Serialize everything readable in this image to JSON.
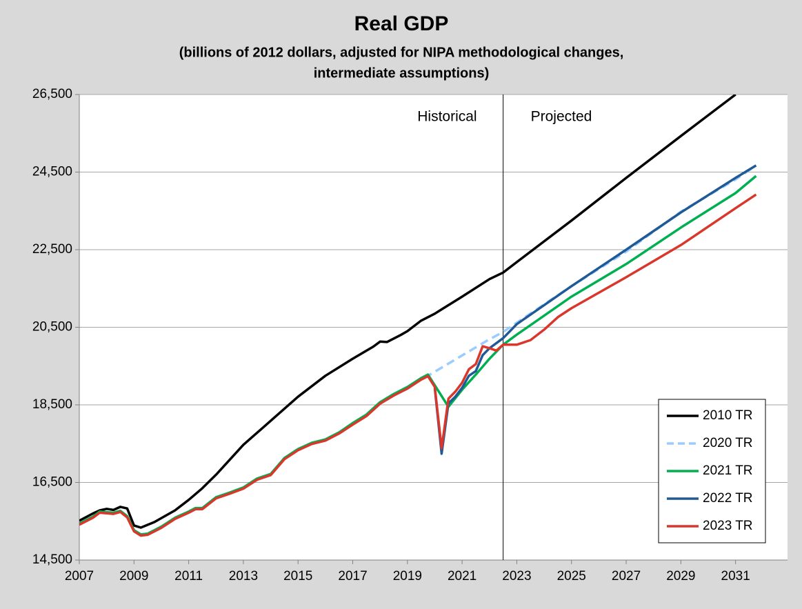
{
  "chart_data": {
    "type": "line",
    "title": "Real GDP",
    "subtitle": [
      "(billions of 2012 dollars, adjusted for NIPA methodological changes,",
      "intermediate assumptions)"
    ],
    "annotations": [
      "Historical",
      "Projected"
    ],
    "divider": 2022.5,
    "xlim": [
      2007,
      2032.9
    ],
    "xticks": [
      2007,
      2009,
      2011,
      2013,
      2015,
      2017,
      2019,
      2021,
      2023,
      2025,
      2027,
      2029,
      2031
    ],
    "ylim": [
      14500,
      26500
    ],
    "yticks": [
      {
        "value": 14500,
        "label": "14,500"
      },
      {
        "value": 16500,
        "label": "16,500"
      },
      {
        "value": 18500,
        "label": "18,500"
      },
      {
        "value": 20500,
        "label": "20,500"
      },
      {
        "value": 22500,
        "label": "22,500"
      },
      {
        "value": 24500,
        "label": "24,500"
      },
      {
        "value": 26500,
        "label": "26,500"
      }
    ],
    "grid": true,
    "legend": "bottom-right",
    "series": [
      {
        "name": "2010 TR",
        "color": "#000000",
        "dashed": false,
        "x": [
          2007,
          2007.5,
          2007.75,
          2008,
          2008.25,
          2008.5,
          2008.75,
          2009,
          2009.25,
          2009.75,
          2010.5,
          2011,
          2011.5,
          2012,
          2013,
          2014,
          2015,
          2016,
          2017,
          2017.75,
          2018,
          2018.25,
          2018.75,
          2019,
          2019.5,
          2020,
          2021,
          2022,
          2022.5,
          2023,
          2025,
          2027,
          2029,
          2031
        ],
        "values": [
          15513,
          15700,
          15780,
          15820,
          15790,
          15870,
          15830,
          15390,
          15335,
          15480,
          15780,
          16050,
          16350,
          16700,
          17470,
          18090,
          18710,
          19250,
          19690,
          20000,
          20130,
          20120,
          20300,
          20400,
          20670,
          20850,
          21290,
          21740,
          21910,
          22180,
          23250,
          24350,
          25430,
          26500
        ]
      },
      {
        "name": "2020 TR",
        "color": "#99ccff",
        "dashed": true,
        "x": [
          2007,
          2007.5,
          2007.75,
          2008.25,
          2008.5,
          2008.75,
          2009,
          2009.25,
          2009.5,
          2009.75,
          2010,
          2010.5,
          2011,
          2011.25,
          2011.5,
          2012,
          2012.5,
          2013,
          2013.5,
          2014,
          2014.5,
          2015,
          2015.5,
          2016,
          2016.5,
          2017,
          2017.5,
          2018,
          2018.5,
          2019,
          2019.5,
          2019.75,
          2021.9,
          2022.5,
          2023,
          2025,
          2027,
          2029,
          2031,
          2031.75
        ],
        "values": [
          15420,
          15600,
          15730,
          15700,
          15750,
          15610,
          15250,
          15140,
          15160,
          15250,
          15340,
          15570,
          15730,
          15820,
          15820,
          16100,
          16220,
          16350,
          16580,
          16700,
          17110,
          17340,
          17500,
          17590,
          17770,
          18000,
          18220,
          18540,
          18750,
          18930,
          19160,
          19250,
          20150,
          20380,
          20620,
          21560,
          22450,
          23480,
          24310,
          24670
        ]
      },
      {
        "name": "2021 TR",
        "color": "#00b050",
        "dashed": false,
        "x": [
          2007,
          2007.5,
          2007.75,
          2008.25,
          2008.5,
          2008.75,
          2009,
          2009.25,
          2009.5,
          2009.75,
          2010,
          2010.5,
          2011,
          2011.25,
          2011.5,
          2012,
          2012.5,
          2013,
          2013.5,
          2014,
          2014.5,
          2015,
          2015.5,
          2016,
          2016.5,
          2017,
          2017.5,
          2018,
          2018.5,
          2019,
          2019.5,
          2019.75,
          2020.5,
          2021,
          2021.5,
          2022,
          2022.5,
          2023,
          2025,
          2027,
          2029,
          2031,
          2031.75
        ],
        "values": [
          15440,
          15620,
          15750,
          15720,
          15770,
          15630,
          15270,
          15160,
          15180,
          15270,
          15360,
          15590,
          15750,
          15840,
          15840,
          16120,
          16240,
          16370,
          16600,
          16720,
          17130,
          17360,
          17520,
          17610,
          17790,
          18030,
          18250,
          18570,
          18780,
          18960,
          19190,
          19280,
          18450,
          18890,
          19280,
          19690,
          20050,
          20310,
          21290,
          22130,
          23070,
          23960,
          24400
        ]
      },
      {
        "name": "2022 TR",
        "color": "#1f5a96",
        "dashed": false,
        "x": [
          2020,
          2020.25,
          2020.5,
          2020.75,
          2021,
          2021.25,
          2021.5,
          2021.75,
          2022,
          2022.5,
          2023,
          2025,
          2027,
          2029,
          2031,
          2031.75
        ],
        "values": [
          18930,
          17240,
          18540,
          18710,
          18940,
          19250,
          19370,
          19780,
          19960,
          20220,
          20580,
          21560,
          22500,
          23460,
          24350,
          24670
        ]
      },
      {
        "name": "2023 TR",
        "color": "#d9372c",
        "dashed": false,
        "x": [
          2007,
          2007.5,
          2007.75,
          2008.25,
          2008.5,
          2008.75,
          2009,
          2009.25,
          2009.5,
          2009.75,
          2010,
          2010.5,
          2011,
          2011.25,
          2011.5,
          2012,
          2012.5,
          2013,
          2013.5,
          2014,
          2014.5,
          2015,
          2015.5,
          2016,
          2016.5,
          2017,
          2017.5,
          2018,
          2018.5,
          2019,
          2019.5,
          2019.75,
          2020,
          2020.25,
          2020.5,
          2020.75,
          2021,
          2021.25,
          2021.5,
          2021.75,
          2022,
          2022.25,
          2022.5,
          2023,
          2023.5,
          2024,
          2024.5,
          2025,
          2027,
          2029,
          2031,
          2031.75
        ],
        "values": [
          15410,
          15590,
          15720,
          15690,
          15740,
          15600,
          15240,
          15130,
          15150,
          15240,
          15330,
          15560,
          15720,
          15810,
          15810,
          16090,
          16210,
          16340,
          16570,
          16690,
          17100,
          17330,
          17490,
          17580,
          17760,
          17990,
          18210,
          18530,
          18740,
          18920,
          19150,
          19240,
          18960,
          17380,
          18660,
          18840,
          19070,
          19420,
          19550,
          20010,
          19960,
          19900,
          20050,
          20050,
          20170,
          20440,
          20760,
          20990,
          21790,
          22620,
          23570,
          23920
        ]
      }
    ]
  }
}
